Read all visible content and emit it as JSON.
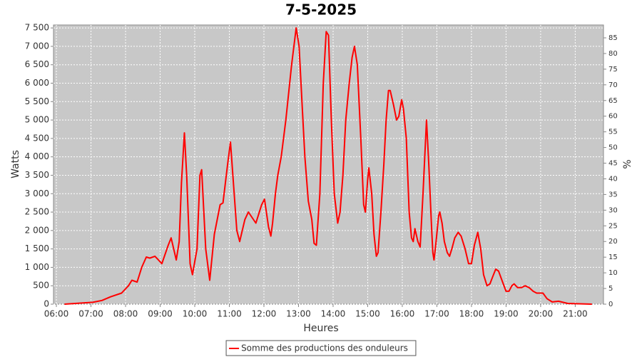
{
  "chart_data": {
    "type": "line",
    "title": "7-5-2025",
    "x_label": "Heures",
    "y_label": "Watts",
    "y2_label": "%",
    "legend_position": "bottom",
    "grid": true,
    "xlim": [
      "05:55",
      "21:49"
    ],
    "xticks": [
      "06:00",
      "07:00",
      "08:00",
      "09:00",
      "10:00",
      "11:00",
      "12:00",
      "13:00",
      "14:00",
      "15:00",
      "16:00",
      "17:00",
      "18:00",
      "19:00",
      "20:00",
      "21:00"
    ],
    "ylim": [
      0,
      7580
    ],
    "yticks": [
      0,
      {
        "value": 500,
        "label": "500"
      },
      {
        "value": 1000,
        "label": "1 000"
      },
      {
        "value": 1500,
        "label": "1 500"
      },
      {
        "value": 2000,
        "label": "2 000"
      },
      {
        "value": 2500,
        "label": "2 500"
      },
      {
        "value": 3000,
        "label": "3 000"
      },
      {
        "value": 3500,
        "label": "3 500"
      },
      {
        "value": 4000,
        "label": "4 000"
      },
      {
        "value": 4500,
        "label": "4 500"
      },
      {
        "value": 5000,
        "label": "5 000"
      },
      {
        "value": 5500,
        "label": "5 500"
      },
      {
        "value": 6000,
        "label": "6 000"
      },
      {
        "value": 6500,
        "label": "6 500"
      },
      {
        "value": 7000,
        "label": "7 000"
      },
      {
        "value": 7500,
        "label": "7 500"
      }
    ],
    "y2lim": [
      0,
      89.1
    ],
    "y2ticks": [
      0,
      5,
      10,
      15,
      20,
      25,
      30,
      35,
      40,
      45,
      50,
      55,
      60,
      65,
      70,
      75,
      80,
      85
    ],
    "x": [
      "06:14",
      "07:03",
      "07:19",
      "07:34",
      "07:53",
      "08:05",
      "08:11",
      "08:20",
      "08:28",
      "08:36",
      "08:42",
      "08:51",
      "08:57",
      "09:03",
      "09:14",
      "09:19",
      "09:28",
      "09:33",
      "09:37",
      "09:42",
      "09:46",
      "09:52",
      "09:56",
      "10:04",
      "10:09",
      "10:12",
      "10:19",
      "10:26",
      "10:34",
      "10:44",
      "10:49",
      "10:57",
      "11:02",
      "11:13",
      "11:18",
      "11:27",
      "11:33",
      "11:46",
      "11:56",
      "12:01",
      "12:08",
      "12:12",
      "12:15",
      "12:20",
      "12:24",
      "12:30",
      "12:38",
      "12:48",
      "12:56",
      "13:01",
      "13:06",
      "13:11",
      "13:17",
      "13:23",
      "13:27",
      "13:31",
      "13:37",
      "13:43",
      "13:48",
      "13:52",
      "13:57",
      "14:02",
      "14:08",
      "14:12",
      "14:17",
      "14:22",
      "14:28",
      "14:33",
      "14:37",
      "14:42",
      "14:48",
      "14:53",
      "14:56",
      "15:00",
      "15:02",
      "15:07",
      "15:11",
      "15:15",
      "15:18",
      "15:23",
      "15:28",
      "15:32",
      "15:36",
      "15:39",
      "15:45",
      "15:50",
      "15:54",
      "15:59",
      "16:02",
      "16:07",
      "16:12",
      "16:16",
      "16:19",
      "16:22",
      "16:27",
      "16:31",
      "16:36",
      "16:42",
      "16:46",
      "16:51",
      "16:53",
      "16:55",
      "16:58",
      "17:03",
      "17:05",
      "17:09",
      "17:13",
      "17:18",
      "17:22",
      "17:26",
      "17:31",
      "17:37",
      "17:42",
      "17:49",
      "17:55",
      "18:00",
      "18:05",
      "18:11",
      "18:16",
      "18:21",
      "18:27",
      "18:32",
      "18:37",
      "18:42",
      "18:47",
      "18:54",
      "19:00",
      "19:05",
      "19:10",
      "19:14",
      "19:20",
      "19:27",
      "19:33",
      "19:40",
      "19:47",
      "19:53",
      "20:04",
      "20:11",
      "20:20",
      "20:31",
      "20:47",
      "21:29"
    ],
    "series": [
      {
        "name": "Somme des productions des onduleurs",
        "color": "#ff0000",
        "values": [
          0,
          50,
          100,
          200,
          300,
          500,
          650,
          600,
          1000,
          1280,
          1250,
          1300,
          1200,
          1100,
          1600,
          1800,
          1200,
          1700,
          3300,
          4650,
          3500,
          1100,
          800,
          1500,
          3500,
          3650,
          1500,
          650,
          1900,
          2700,
          2750,
          3800,
          4400,
          2000,
          1700,
          2300,
          2500,
          2200,
          2700,
          2850,
          2100,
          1850,
          2200,
          3000,
          3500,
          4000,
          5000,
          6500,
          7500,
          7000,
          5500,
          4000,
          2800,
          2300,
          1650,
          1600,
          3000,
          6000,
          7400,
          7300,
          5000,
          3000,
          2200,
          2500,
          3500,
          5000,
          6000,
          6700,
          7000,
          6500,
          4500,
          2700,
          2500,
          3400,
          3700,
          3000,
          1900,
          1300,
          1400,
          2500,
          3800,
          5000,
          5800,
          5800,
          5400,
          5000,
          5100,
          5550,
          5300,
          4500,
          2500,
          1800,
          1700,
          2050,
          1700,
          1550,
          3000,
          5000,
          3800,
          2000,
          1400,
          1200,
          1600,
          2400,
          2500,
          2200,
          1700,
          1400,
          1300,
          1500,
          1800,
          1950,
          1850,
          1500,
          1100,
          1100,
          1600,
          1950,
          1500,
          800,
          500,
          550,
          750,
          950,
          900,
          600,
          350,
          350,
          500,
          550,
          450,
          450,
          500,
          450,
          350,
          300,
          300,
          150,
          60,
          80,
          20,
          0
        ]
      }
    ]
  }
}
